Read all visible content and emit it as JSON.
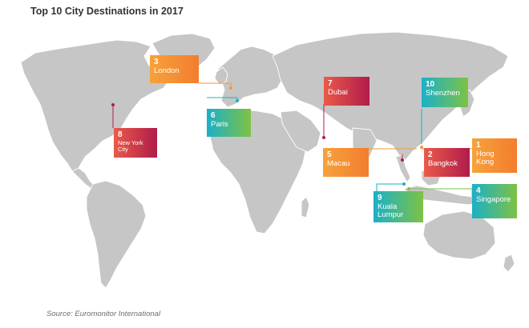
{
  "title": "Top 10 City Destinations in 2017",
  "source": "Source: Euromonitor International",
  "colors": {
    "land": "#c6c6c6",
    "orange": "#f7a23b",
    "rose": "#b01c4a",
    "teal": "#1bb0c8",
    "green": "#7ec244"
  },
  "destinations": [
    {
      "rank": "1",
      "city": "Hong Kong"
    },
    {
      "rank": "2",
      "city": "Bangkok"
    },
    {
      "rank": "3",
      "city": "London"
    },
    {
      "rank": "4",
      "city": "Singapore"
    },
    {
      "rank": "5",
      "city": "Macau"
    },
    {
      "rank": "6",
      "city": "Paris"
    },
    {
      "rank": "7",
      "city": "Dubai"
    },
    {
      "rank": "8",
      "city": "New York City"
    },
    {
      "rank": "9",
      "city": "Kuala Lumpur"
    },
    {
      "rank": "10",
      "city": "Shenzhen"
    }
  ]
}
